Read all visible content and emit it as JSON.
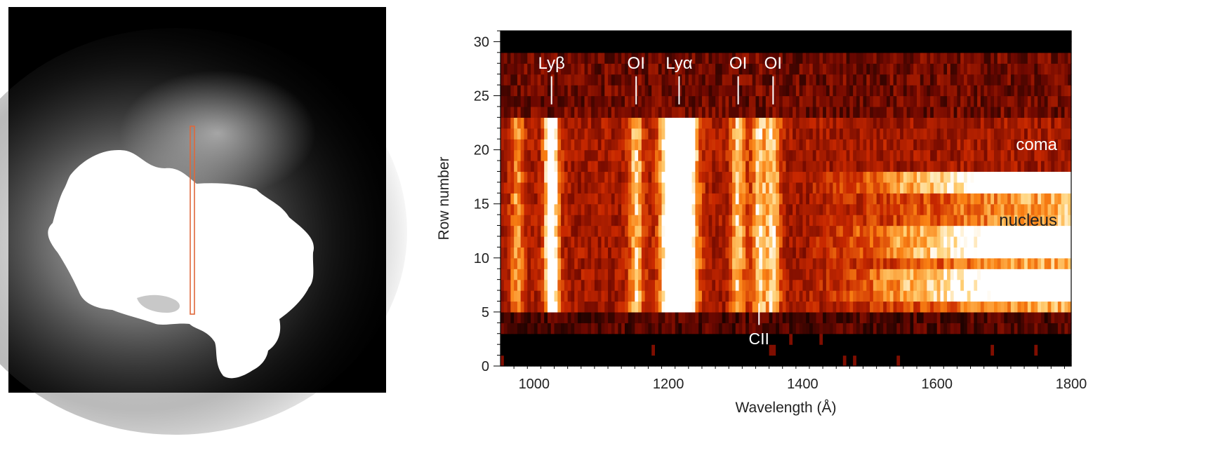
{
  "chart_data": [
    {
      "type": "other",
      "panel": "comet-nucleus-image",
      "content": "grayscale image of comet nucleus with surrounding coma; an orange vertical slit marks the spectrograph aperture",
      "colors": {
        "background": "#000000",
        "nucleus": "#ffffff",
        "slit": "#e0683a"
      }
    },
    {
      "type": "heatmap",
      "colormap": "black-red-orange-yellow-white",
      "xlabel": "Wavelength (Å)",
      "ylabel": "Row number",
      "xlim": [
        950,
        1800
      ],
      "ylim": [
        0,
        31
      ],
      "xticks": [
        1000,
        1200,
        1400,
        1600,
        1800
      ],
      "yticks": [
        0,
        5,
        10,
        15,
        20,
        25,
        30
      ],
      "grid": false,
      "rows": {
        "empty_top": [
          29,
          31
        ],
        "coma": [
          18,
          23
        ],
        "nucleus": [
          5.5,
          18
        ],
        "empty_bottom": [
          0,
          3
        ]
      },
      "lines": [
        {
          "label": "Lyβ",
          "wavelength": 1026
        },
        {
          "label": "OI",
          "wavelength": 1152
        },
        {
          "label": "Lyα",
          "wavelength": 1216
        },
        {
          "label": "OI",
          "wavelength": 1304
        },
        {
          "label": "OI",
          "wavelength": 1356
        },
        {
          "label": "CII",
          "wavelength": 1335
        }
      ],
      "region_labels": [
        {
          "text": "coma",
          "row": 20.5
        },
        {
          "text": "nucleus",
          "row": 13.5
        }
      ]
    }
  ]
}
